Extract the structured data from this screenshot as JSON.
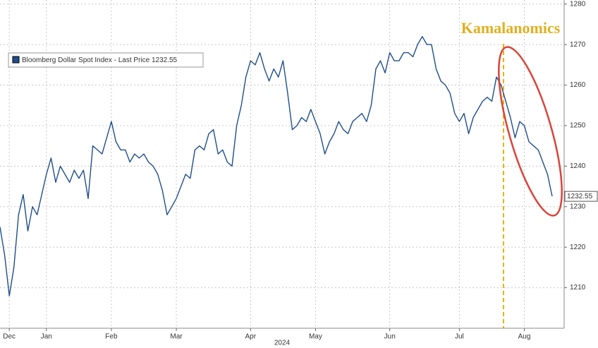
{
  "chart_data": {
    "type": "line",
    "title": "Kamalanomics",
    "legend_label": "Bloomberg Dollar Spot Index - Last Price 1232.55",
    "last_price_label": "1232.55",
    "x_axis_year": "2024",
    "categories": [
      null,
      null,
      "Dec",
      null,
      null,
      null,
      null,
      null,
      null,
      null,
      "Jan",
      null,
      null,
      null,
      null,
      null,
      null,
      null,
      null,
      null,
      null,
      null,
      null,
      null,
      "Feb",
      null,
      null,
      null,
      null,
      null,
      null,
      null,
      null,
      null,
      null,
      null,
      null,
      null,
      "Mar",
      null,
      null,
      null,
      null,
      null,
      null,
      null,
      null,
      null,
      null,
      null,
      null,
      null,
      null,
      null,
      "Apr",
      null,
      null,
      null,
      null,
      null,
      null,
      null,
      null,
      null,
      null,
      null,
      null,
      null,
      "May",
      null,
      null,
      null,
      null,
      null,
      null,
      null,
      null,
      null,
      null,
      null,
      null,
      null,
      null,
      null,
      "Jun",
      null,
      null,
      null,
      null,
      null,
      null,
      null,
      null,
      null,
      null,
      null,
      null,
      null,
      null,
      "Jul",
      null,
      null,
      null,
      null,
      null,
      null,
      null,
      null,
      null,
      null,
      null,
      null,
      null,
      "Aug",
      null,
      null,
      null,
      null,
      null,
      null
    ],
    "series": [
      {
        "name": "Bloomberg Dollar Spot Index",
        "color": "#1f4e8c",
        "values": [
          1225,
          1218,
          1208,
          1215,
          1228,
          1233,
          1224,
          1230,
          1228,
          1233,
          1238,
          1242,
          1236,
          1240,
          1238,
          1236,
          1239,
          1237,
          1239,
          1232,
          1245,
          1244,
          1243,
          1247,
          1251,
          1246,
          1244,
          1244,
          1241,
          1243,
          1242,
          1243,
          1241,
          1240,
          1238,
          1234,
          1228,
          1230,
          1232,
          1235,
          1238,
          1237,
          1244,
          1245,
          1244,
          1248,
          1249,
          1243,
          1244,
          1241,
          1240,
          1250,
          1255,
          1262,
          1266,
          1265,
          1268,
          1264,
          1261,
          1264,
          1262,
          1266,
          1258,
          1249,
          1250,
          1252,
          1251,
          1254,
          1251,
          1248,
          1243,
          1246,
          1248,
          1251,
          1249,
          1248,
          1251,
          1252,
          1253,
          1251,
          1255,
          1264,
          1266,
          1263,
          1268,
          1266,
          1266,
          1268,
          1268,
          1267,
          1270,
          1272,
          1270,
          1270,
          1264,
          1261,
          1260,
          1258,
          1253,
          1251,
          1253,
          1248,
          1252,
          1254,
          1256,
          1257,
          1256,
          1262,
          1260,
          1256,
          1252,
          1247,
          1251,
          1250,
          1246,
          1245,
          1244,
          1241,
          1238,
          1232.55
        ]
      }
    ],
    "ylim": [
      1200,
      1281
    ],
    "yticks": [
      1210,
      1220,
      1230,
      1240,
      1250,
      1260,
      1270,
      1280
    ],
    "grid": true
  }
}
